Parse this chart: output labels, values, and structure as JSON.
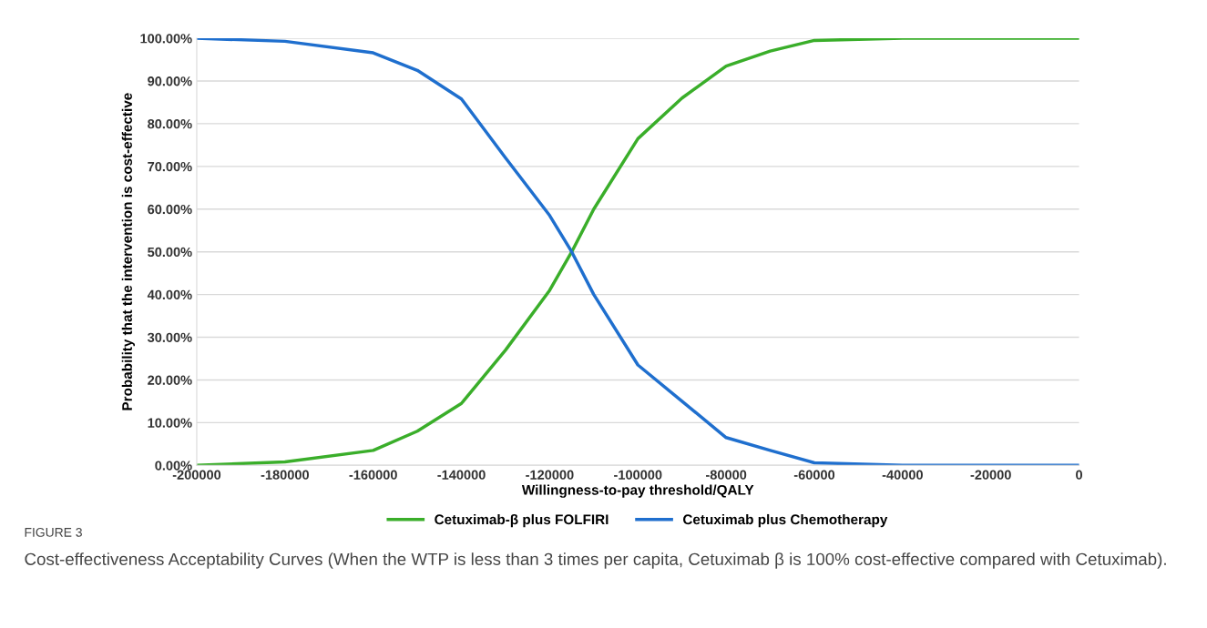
{
  "chart_data": {
    "type": "line",
    "xlabel": "Willingness-to-pay threshold/QALY",
    "ylabel": "Probability that the intervention is cost-effective",
    "xlim": [
      -200000,
      0
    ],
    "xticks": [
      -200000,
      -180000,
      -160000,
      -140000,
      -120000,
      -100000,
      -80000,
      -60000,
      -40000,
      -20000,
      0
    ],
    "ylim": [
      0,
      100
    ],
    "yticks": [
      {
        "value": 0,
        "label": "0.00%"
      },
      {
        "value": 10,
        "label": "10.00%"
      },
      {
        "value": 20,
        "label": "20.00%"
      },
      {
        "value": 30,
        "label": "30.00%"
      },
      {
        "value": 40,
        "label": "40.00%"
      },
      {
        "value": 50,
        "label": "50.00%"
      },
      {
        "value": 60,
        "label": "60.00%"
      },
      {
        "value": 70,
        "label": "70.00%"
      },
      {
        "value": 80,
        "label": "80.00%"
      },
      {
        "value": 90,
        "label": "90.00%"
      },
      {
        "value": 100,
        "label": "100.00%"
      }
    ],
    "grid": "y",
    "legend": "bottom",
    "marker": "none",
    "line_style": "solid",
    "series": [
      {
        "name": "Cetuximab-β plus FOLFIRI",
        "color": "#3aae2a",
        "x": [
          -200000,
          -180000,
          -160000,
          -150000,
          -140000,
          -130000,
          -120000,
          -115000,
          -110000,
          -100000,
          -90000,
          -80000,
          -70000,
          -60000,
          -40000,
          0
        ],
        "values": [
          0,
          0.8,
          3.5,
          8,
          14.5,
          27,
          41,
          50,
          60,
          76.5,
          86,
          93.5,
          97,
          99.5,
          100,
          100
        ]
      },
      {
        "name": "Cetuximab plus Chemotherapy",
        "color": "#1f6fce",
        "x": [
          -200000,
          -180000,
          -160000,
          -150000,
          -140000,
          -130000,
          -120000,
          -115000,
          -110000,
          -100000,
          -90000,
          -80000,
          -70000,
          -60000,
          -40000,
          0
        ],
        "values": [
          100,
          99.3,
          96.6,
          92.5,
          85.8,
          72,
          58.5,
          50,
          40,
          23.5,
          15,
          6.5,
          3.5,
          0.6,
          0,
          0
        ]
      }
    ],
    "annotations": [
      "FIGURE 3",
      "Cost-effectiveness Acceptability Curves (When the WTP is less than 3 times per capita, Cetuximab β is 100% cost-effective compared with Cetuximab)."
    ]
  }
}
